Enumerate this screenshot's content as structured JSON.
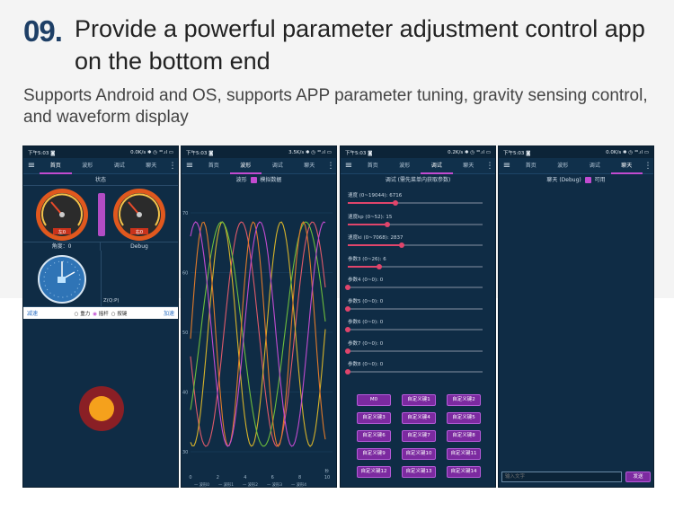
{
  "header": {
    "number": "09.",
    "title": "Provide a powerful parameter adjustment control app on the bottom end",
    "subtitle": "Supports Android and OS, supports APP parameter tuning, gravity sensing control, and waveform display"
  },
  "status_bars": [
    {
      "time": "下午5:03 ◙",
      "info": "0.0K/s ✱ ◷ ⁴⁶.ıl ▭"
    },
    {
      "time": "下午5:03 ◙",
      "info": "3.5K/s ✱ ◷ ⁴⁶.ıl ▭"
    },
    {
      "time": "下午5:03 ◙",
      "info": "0.2K/s ✱ ◷ ⁴⁶.ıl ▭"
    },
    {
      "time": "下午5:03 ◙",
      "info": "0.0K/s ✱ ◷ ⁴⁶.ıl ▭"
    }
  ],
  "tabs": [
    "首页",
    "波形",
    "调试",
    "聊天"
  ],
  "home": {
    "status_label": "状态",
    "left_gauge": "左0",
    "right_gauge": "右0",
    "angle_label": "角度：0",
    "debug_label": "Debug",
    "zqp_label": "Z(Q:P)",
    "decel": "减速",
    "accel": "加速",
    "modes": [
      "重力",
      "摇杆",
      "按键"
    ]
  },
  "wave": {
    "title": "波形",
    "checkbox_label": "模拟数据",
    "x_ticks": [
      "0",
      "2",
      "4",
      "6",
      "8",
      "10"
    ],
    "y_ticks": [
      "70",
      "60",
      "50",
      "40",
      "30"
    ],
    "x_unit": "秒",
    "legend": [
      "— 波形0",
      "— 波形1",
      "— 波形2",
      "— 波形3",
      "— 波形4"
    ],
    "colors": [
      "#e05a6a",
      "#d6b32a",
      "#6dbd3c",
      "#e07a2a",
      "#c24bd0"
    ]
  },
  "debug": {
    "title": "调试 (需先菜单内获取参数)",
    "sliders": [
      {
        "label": "速度 (0~19044): 6716",
        "value": 0.353
      },
      {
        "label": "速度kp (0~52): 15",
        "value": 0.29
      },
      {
        "label": "速度ki (0~7068): 2837",
        "value": 0.4
      },
      {
        "label": "参数3 (0~26): 6",
        "value": 0.23
      },
      {
        "label": "参数4 (0~0): 0",
        "value": 0
      },
      {
        "label": "参数5 (0~0): 0",
        "value": 0
      },
      {
        "label": "参数6 (0~0): 0",
        "value": 0
      },
      {
        "label": "参数7 (0~0): 0",
        "value": 0
      },
      {
        "label": "参数8 (0~0): 0",
        "value": 0
      }
    ],
    "buttons": [
      "M0",
      "自定义键1",
      "自定义键2",
      "自定义键3",
      "自定义键4",
      "自定义键5",
      "自定义键6",
      "自定义键7",
      "自定义键8",
      "自定义键9",
      "自定义键10",
      "自定义键11",
      "自定义键12",
      "自定义键13",
      "自定义键14"
    ]
  },
  "chat": {
    "title": "聊天 (Debug)",
    "checkbox_label": "可用",
    "input_placeholder": "输入文字",
    "send_label": "发送"
  }
}
